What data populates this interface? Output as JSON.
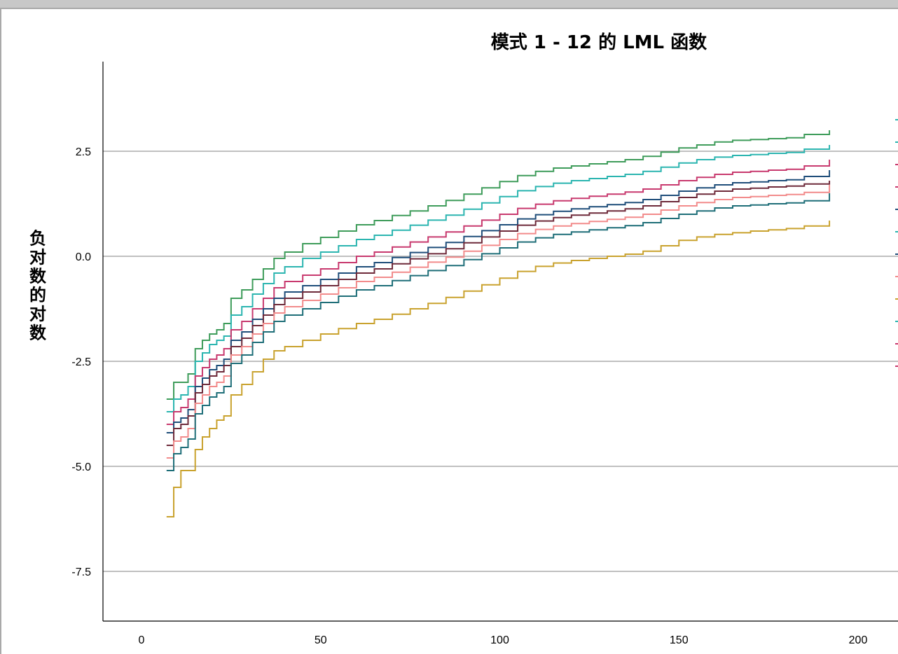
{
  "chart_data": {
    "type": "line",
    "title": "模式 1 - 12 的 LML 函数",
    "xlabel": "",
    "ylabel": "负对数的对数",
    "xlim": [
      0,
      210
    ],
    "ylim": [
      -8.7,
      4.7
    ],
    "xticks": [
      0,
      50,
      100,
      150,
      200
    ],
    "yticks": [
      2.5,
      0.0,
      -2.5,
      -5.0,
      -7.5
    ],
    "ytick_labels": [
      "2.5",
      "0.0",
      "-2.5",
      "-5.0",
      "-7.5"
    ],
    "grid": "horizontal",
    "legend": "right (cropped)",
    "x": [
      7,
      9,
      11,
      13,
      15,
      17,
      19,
      21,
      23,
      25,
      28,
      31,
      34,
      37,
      40,
      45,
      50,
      55,
      60,
      65,
      70,
      75,
      80,
      85,
      90,
      95,
      100,
      105,
      110,
      115,
      120,
      125,
      130,
      135,
      140,
      145,
      150,
      155,
      160,
      165,
      170,
      175,
      180,
      185,
      192
    ],
    "series": [
      {
        "color": "#3e9c5a",
        "values": [
          -3.4,
          -3.0,
          -3.0,
          -2.8,
          -2.2,
          -2.0,
          -1.85,
          -1.75,
          -1.6,
          -1.0,
          -0.8,
          -0.55,
          -0.3,
          -0.05,
          0.1,
          0.3,
          0.45,
          0.6,
          0.75,
          0.85,
          0.97,
          1.08,
          1.2,
          1.33,
          1.48,
          1.63,
          1.78,
          1.92,
          2.02,
          2.1,
          2.15,
          2.2,
          2.25,
          2.3,
          2.38,
          2.48,
          2.58,
          2.65,
          2.72,
          2.76,
          2.78,
          2.8,
          2.82,
          2.9,
          3.0
        ]
      },
      {
        "color": "#2bb5b0",
        "values": [
          -3.7,
          -3.4,
          -3.3,
          -3.1,
          -2.5,
          -2.3,
          -2.1,
          -2.0,
          -1.9,
          -1.4,
          -1.2,
          -0.9,
          -0.65,
          -0.4,
          -0.25,
          -0.05,
          0.1,
          0.25,
          0.4,
          0.5,
          0.62,
          0.74,
          0.86,
          0.98,
          1.12,
          1.27,
          1.42,
          1.56,
          1.66,
          1.74,
          1.8,
          1.85,
          1.9,
          1.95,
          2.02,
          2.12,
          2.22,
          2.3,
          2.36,
          2.4,
          2.42,
          2.45,
          2.47,
          2.55,
          2.65
        ]
      },
      {
        "color": "#c8396e",
        "values": [
          -4.0,
          -3.7,
          -3.6,
          -3.4,
          -2.85,
          -2.65,
          -2.45,
          -2.35,
          -2.2,
          -1.75,
          -1.55,
          -1.25,
          -1.0,
          -0.75,
          -0.6,
          -0.45,
          -0.3,
          -0.15,
          0.0,
          0.1,
          0.22,
          0.34,
          0.46,
          0.58,
          0.72,
          0.86,
          1.0,
          1.14,
          1.24,
          1.32,
          1.38,
          1.43,
          1.48,
          1.53,
          1.6,
          1.7,
          1.8,
          1.88,
          1.95,
          2.0,
          2.02,
          2.05,
          2.07,
          2.15,
          2.3
        ]
      },
      {
        "color": "#1f4e7a",
        "values": [
          -4.2,
          -3.95,
          -3.85,
          -3.65,
          -3.1,
          -2.9,
          -2.7,
          -2.6,
          -2.45,
          -2.0,
          -1.8,
          -1.5,
          -1.25,
          -1.0,
          -0.85,
          -0.7,
          -0.55,
          -0.4,
          -0.25,
          -0.15,
          -0.03,
          0.09,
          0.21,
          0.33,
          0.47,
          0.61,
          0.75,
          0.89,
          0.99,
          1.07,
          1.13,
          1.18,
          1.23,
          1.28,
          1.35,
          1.45,
          1.55,
          1.63,
          1.7,
          1.75,
          1.77,
          1.8,
          1.82,
          1.9,
          2.05
        ]
      },
      {
        "color": "#6e2a3a",
        "values": [
          -4.5,
          -4.1,
          -4.0,
          -3.8,
          -3.25,
          -3.05,
          -2.85,
          -2.75,
          -2.6,
          -2.15,
          -1.95,
          -1.65,
          -1.4,
          -1.15,
          -1.0,
          -0.85,
          -0.7,
          -0.55,
          -0.4,
          -0.3,
          -0.18,
          -0.06,
          0.06,
          0.18,
          0.32,
          0.46,
          0.6,
          0.74,
          0.84,
          0.92,
          0.98,
          1.03,
          1.08,
          1.13,
          1.2,
          1.3,
          1.4,
          1.48,
          1.55,
          1.6,
          1.62,
          1.65,
          1.67,
          1.72,
          1.8
        ]
      },
      {
        "color": "#f28b8b",
        "values": [
          -4.8,
          -4.4,
          -4.3,
          -4.1,
          -3.5,
          -3.3,
          -3.1,
          -3.0,
          -2.85,
          -2.35,
          -2.15,
          -1.85,
          -1.6,
          -1.35,
          -1.2,
          -1.05,
          -0.9,
          -0.75,
          -0.6,
          -0.5,
          -0.38,
          -0.26,
          -0.14,
          -0.02,
          0.12,
          0.26,
          0.4,
          0.54,
          0.64,
          0.72,
          0.78,
          0.83,
          0.88,
          0.93,
          1.0,
          1.1,
          1.2,
          1.28,
          1.35,
          1.4,
          1.42,
          1.45,
          1.47,
          1.52,
          1.7
        ]
      },
      {
        "color": "#1e6e78",
        "values": [
          -5.1,
          -4.7,
          -4.55,
          -4.35,
          -3.75,
          -3.55,
          -3.35,
          -3.25,
          -3.1,
          -2.55,
          -2.35,
          -2.05,
          -1.8,
          -1.55,
          -1.4,
          -1.25,
          -1.1,
          -0.95,
          -0.8,
          -0.7,
          -0.58,
          -0.46,
          -0.34,
          -0.22,
          -0.08,
          0.06,
          0.2,
          0.34,
          0.44,
          0.52,
          0.58,
          0.63,
          0.68,
          0.73,
          0.8,
          0.9,
          1.0,
          1.08,
          1.15,
          1.2,
          1.22,
          1.25,
          1.27,
          1.32,
          1.5
        ]
      },
      {
        "color": "#c9a22e",
        "values": [
          -6.2,
          -5.5,
          -5.1,
          -5.1,
          -4.6,
          -4.3,
          -4.1,
          -3.9,
          -3.8,
          -3.3,
          -3.05,
          -2.75,
          -2.45,
          -2.25,
          -2.15,
          -2.0,
          -1.85,
          -1.72,
          -1.6,
          -1.5,
          -1.38,
          -1.25,
          -1.12,
          -0.98,
          -0.83,
          -0.68,
          -0.52,
          -0.36,
          -0.24,
          -0.16,
          -0.1,
          -0.05,
          0.0,
          0.05,
          0.12,
          0.25,
          0.38,
          0.46,
          0.52,
          0.56,
          0.6,
          0.63,
          0.66,
          0.72,
          0.85
        ]
      }
    ]
  }
}
